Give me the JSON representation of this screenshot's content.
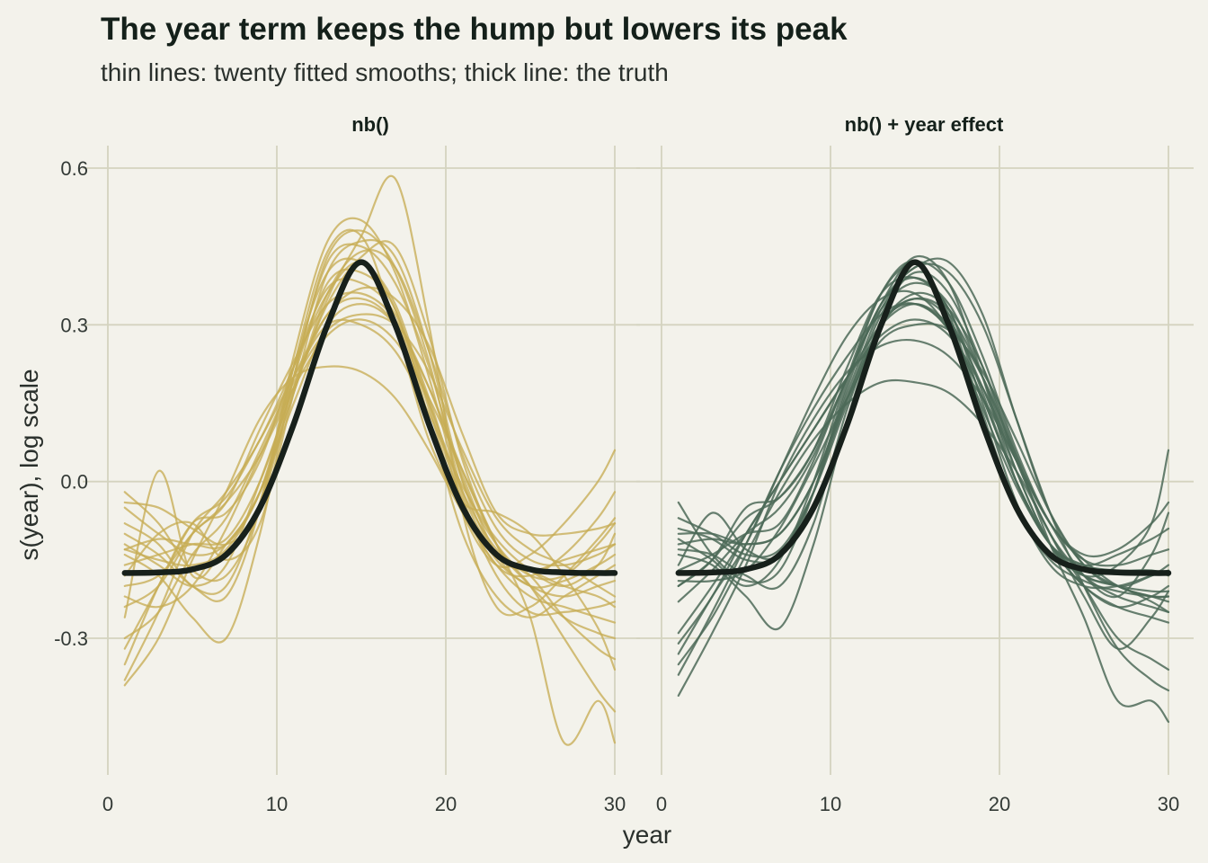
{
  "title": "The year term keeps the hump but lowers its peak",
  "subtitle": "thin lines: twenty fitted smooths; thick line: the truth",
  "chart_data": {
    "type": "line",
    "xlabel": "year",
    "ylabel": "s(year), log scale",
    "xlim": [
      0,
      30
    ],
    "ylim": [
      -0.6,
      0.6
    ],
    "x_ticks": [
      0,
      10,
      20,
      30
    ],
    "y_ticks": [
      -0.3,
      0.0,
      0.3,
      0.6
    ],
    "y_tick_labels": [
      "-0.3",
      "0.0",
      "0.3",
      "0.6"
    ],
    "grid": true,
    "legend": "none",
    "x": [
      1,
      3,
      5,
      7,
      9,
      11,
      13,
      15,
      17,
      19,
      21,
      23,
      25,
      27,
      29,
      30
    ],
    "truth": {
      "color": "#17201b",
      "values": [
        -0.175,
        -0.174,
        -0.168,
        -0.14,
        -0.05,
        0.11,
        0.3,
        0.42,
        0.3,
        0.11,
        -0.05,
        -0.14,
        -0.168,
        -0.174,
        -0.175,
        -0.175
      ]
    },
    "panels": [
      {
        "label": "nb()",
        "color": "#c7ad54",
        "series": [
          [
            -0.02,
            -0.08,
            -0.17,
            -0.18,
            -0.05,
            0.22,
            0.44,
            0.47,
            0.3,
            0.08,
            -0.04,
            -0.06,
            -0.1,
            -0.18,
            -0.28,
            -0.36
          ],
          [
            -0.38,
            -0.25,
            -0.1,
            -0.02,
            0.08,
            0.22,
            0.36,
            0.42,
            0.33,
            0.14,
            -0.06,
            -0.16,
            -0.14,
            -0.08,
            0.0,
            0.06
          ],
          [
            -0.13,
            -0.15,
            -0.16,
            -0.13,
            -0.02,
            0.17,
            0.35,
            0.47,
            0.58,
            0.3,
            -0.06,
            -0.24,
            -0.24,
            -0.18,
            -0.11,
            -0.07
          ],
          [
            -0.2,
            -0.18,
            -0.1,
            -0.04,
            0.05,
            0.18,
            0.28,
            0.31,
            0.27,
            0.16,
            0.02,
            -0.12,
            -0.26,
            -0.5,
            -0.42,
            -0.5
          ],
          [
            -0.26,
            0.02,
            -0.18,
            -0.12,
            -0.02,
            0.2,
            0.38,
            0.4,
            0.33,
            0.12,
            -0.1,
            -0.22,
            -0.26,
            -0.22,
            -0.18,
            -0.16
          ],
          [
            -0.04,
            -0.05,
            -0.09,
            -0.12,
            -0.05,
            0.2,
            0.43,
            0.48,
            0.41,
            0.23,
            -0.02,
            -0.14,
            -0.17,
            -0.2,
            -0.22,
            -0.24
          ],
          [
            -0.39,
            -0.3,
            -0.15,
            -0.02,
            0.12,
            0.2,
            0.22,
            0.21,
            0.16,
            0.06,
            -0.06,
            -0.16,
            -0.22,
            -0.24,
            -0.26,
            -0.27
          ],
          [
            -0.13,
            -0.11,
            -0.12,
            -0.12,
            -0.02,
            0.17,
            0.36,
            0.44,
            0.41,
            0.25,
            0.05,
            -0.09,
            -0.15,
            -0.16,
            -0.14,
            -0.12
          ],
          [
            -0.35,
            -0.2,
            -0.08,
            -0.06,
            0.04,
            0.22,
            0.37,
            0.38,
            0.32,
            0.16,
            -0.04,
            -0.16,
            -0.18,
            -0.14,
            -0.07,
            -0.02
          ],
          [
            -0.08,
            -0.12,
            -0.2,
            -0.2,
            -0.04,
            0.22,
            0.4,
            0.42,
            0.34,
            0.15,
            -0.04,
            -0.15,
            -0.2,
            -0.22,
            -0.2,
            -0.19
          ],
          [
            -0.16,
            -0.14,
            -0.12,
            -0.11,
            0.0,
            0.18,
            0.32,
            0.35,
            0.3,
            0.15,
            -0.02,
            -0.13,
            -0.18,
            -0.26,
            -0.32,
            -0.34
          ],
          [
            -0.22,
            -0.24,
            -0.2,
            -0.09,
            0.05,
            0.19,
            0.29,
            0.32,
            0.3,
            0.21,
            0.06,
            -0.07,
            -0.13,
            -0.16,
            -0.2,
            -0.22
          ],
          [
            -0.12,
            -0.16,
            -0.2,
            -0.16,
            0.0,
            0.18,
            0.34,
            0.43,
            0.45,
            0.28,
            0.04,
            -0.12,
            -0.2,
            -0.26,
            -0.29,
            -0.3
          ],
          [
            -0.3,
            -0.25,
            -0.14,
            -0.07,
            0.06,
            0.2,
            0.32,
            0.37,
            0.35,
            0.26,
            0.09,
            -0.06,
            -0.1,
            -0.1,
            -0.09,
            -0.08
          ],
          [
            -0.18,
            -0.1,
            -0.08,
            -0.15,
            -0.08,
            0.17,
            0.4,
            0.46,
            0.43,
            0.25,
            0.0,
            -0.14,
            -0.17,
            -0.15,
            -0.13,
            -0.12
          ],
          [
            -0.05,
            -0.1,
            -0.14,
            -0.12,
            -0.02,
            0.15,
            0.3,
            0.34,
            0.3,
            0.18,
            0.02,
            -0.12,
            -0.2,
            -0.3,
            -0.4,
            -0.44
          ],
          [
            -0.1,
            -0.14,
            -0.2,
            -0.22,
            -0.05,
            0.24,
            0.46,
            0.5,
            0.4,
            0.2,
            -0.03,
            -0.18,
            -0.25,
            -0.25,
            -0.24,
            -0.23
          ],
          [
            -0.32,
            -0.2,
            -0.08,
            -0.03,
            0.08,
            0.2,
            0.3,
            0.3,
            0.25,
            0.13,
            -0.01,
            -0.11,
            -0.17,
            -0.2,
            -0.16,
            -0.1
          ],
          [
            -0.14,
            -0.18,
            -0.26,
            -0.3,
            -0.1,
            0.2,
            0.42,
            0.45,
            0.38,
            0.22,
            0.0,
            -0.12,
            -0.18,
            -0.18,
            -0.12,
            -0.08
          ],
          [
            -0.24,
            -0.2,
            -0.1,
            -0.04,
            0.1,
            0.23,
            0.34,
            0.36,
            0.31,
            0.18,
            0.01,
            -0.14,
            -0.2,
            -0.19,
            -0.16,
            -0.14
          ]
        ]
      },
      {
        "label": "nb() + year effect",
        "color": "#4c6a58",
        "series": [
          [
            -0.04,
            -0.14,
            -0.19,
            -0.17,
            -0.02,
            0.19,
            0.36,
            0.42,
            0.32,
            0.13,
            -0.05,
            -0.15,
            -0.19,
            -0.21,
            -0.22,
            -0.22
          ],
          [
            -0.33,
            -0.22,
            -0.12,
            0.02,
            0.16,
            0.28,
            0.35,
            0.36,
            0.29,
            0.14,
            -0.01,
            -0.12,
            -0.18,
            -0.2,
            -0.23,
            -0.25
          ],
          [
            -0.1,
            -0.1,
            -0.12,
            -0.1,
            0.0,
            0.17,
            0.33,
            0.41,
            0.4,
            0.3,
            0.12,
            -0.06,
            -0.2,
            -0.32,
            -0.38,
            -0.4
          ],
          [
            -0.41,
            -0.29,
            -0.16,
            0.0,
            0.12,
            0.21,
            0.26,
            0.27,
            0.24,
            0.16,
            0.04,
            -0.08,
            -0.18,
            -0.22,
            -0.14,
            -0.06
          ],
          [
            -0.2,
            -0.15,
            -0.05,
            -0.03,
            0.06,
            0.22,
            0.36,
            0.39,
            0.33,
            0.17,
            0.0,
            -0.12,
            -0.16,
            -0.17,
            -0.17,
            -0.18
          ],
          [
            -0.16,
            -0.06,
            -0.13,
            -0.14,
            -0.02,
            0.18,
            0.34,
            0.39,
            0.33,
            0.15,
            -0.04,
            -0.16,
            -0.2,
            -0.2,
            -0.18,
            -0.17
          ],
          [
            -0.35,
            -0.26,
            -0.14,
            -0.02,
            0.08,
            0.15,
            0.19,
            0.19,
            0.17,
            0.11,
            0.02,
            -0.1,
            -0.22,
            -0.32,
            -0.26,
            -0.21
          ],
          [
            -0.11,
            -0.15,
            -0.2,
            -0.15,
            0.0,
            0.2,
            0.36,
            0.42,
            0.38,
            0.24,
            0.06,
            -0.08,
            -0.15,
            -0.2,
            -0.22,
            -0.23
          ],
          [
            -0.19,
            -0.19,
            -0.17,
            -0.09,
            0.03,
            0.16,
            0.27,
            0.3,
            0.29,
            0.21,
            0.08,
            -0.06,
            -0.16,
            -0.2,
            -0.22,
            -0.22
          ],
          [
            -0.07,
            -0.1,
            -0.14,
            -0.13,
            -0.02,
            0.15,
            0.3,
            0.36,
            0.33,
            0.22,
            0.05,
            -0.12,
            -0.26,
            -0.42,
            -0.42,
            -0.46
          ],
          [
            -0.29,
            -0.2,
            -0.1,
            0.0,
            0.1,
            0.2,
            0.3,
            0.34,
            0.3,
            0.2,
            0.05,
            -0.08,
            -0.14,
            -0.13,
            -0.08,
            -0.04
          ],
          [
            -0.2,
            -0.15,
            -0.07,
            -0.03,
            0.06,
            0.2,
            0.34,
            0.43,
            0.38,
            0.2,
            0.0,
            -0.12,
            -0.16,
            -0.14,
            -0.11,
            -0.09
          ],
          [
            -0.14,
            -0.16,
            -0.22,
            -0.28,
            -0.12,
            0.12,
            0.3,
            0.34,
            0.29,
            0.16,
            0.0,
            -0.12,
            -0.18,
            -0.2,
            -0.21,
            -0.21
          ],
          [
            -0.37,
            -0.25,
            -0.12,
            0.02,
            0.14,
            0.24,
            0.32,
            0.34,
            0.29,
            0.16,
            0.0,
            -0.12,
            -0.2,
            -0.24,
            -0.22,
            -0.2
          ],
          [
            -0.09,
            -0.11,
            -0.15,
            -0.14,
            -0.02,
            0.16,
            0.3,
            0.35,
            0.31,
            0.18,
            0.02,
            -0.12,
            -0.18,
            -0.16,
            -0.08,
            0.06
          ],
          [
            -0.23,
            -0.17,
            -0.1,
            -0.05,
            0.05,
            0.2,
            0.34,
            0.41,
            0.42,
            0.32,
            0.12,
            -0.06,
            -0.16,
            -0.2,
            -0.18,
            -0.16
          ],
          [
            -0.12,
            -0.11,
            -0.12,
            -0.1,
            0.0,
            0.16,
            0.32,
            0.4,
            0.36,
            0.22,
            0.04,
            -0.1,
            -0.2,
            -0.3,
            -0.34,
            -0.36
          ],
          [
            -0.31,
            -0.22,
            -0.1,
            0.0,
            0.1,
            0.2,
            0.28,
            0.31,
            0.28,
            0.18,
            0.04,
            -0.08,
            -0.15,
            -0.16,
            -0.14,
            -0.13
          ],
          [
            -0.17,
            -0.14,
            -0.1,
            -0.08,
            0.04,
            0.2,
            0.33,
            0.38,
            0.34,
            0.2,
            0.02,
            -0.12,
            -0.2,
            -0.24,
            -0.26,
            -0.27
          ],
          [
            -0.13,
            -0.14,
            -0.18,
            -0.2,
            -0.08,
            0.14,
            0.3,
            0.35,
            0.32,
            0.2,
            0.04,
            -0.1,
            -0.18,
            -0.22,
            -0.24,
            -0.25
          ]
        ]
      }
    ]
  }
}
